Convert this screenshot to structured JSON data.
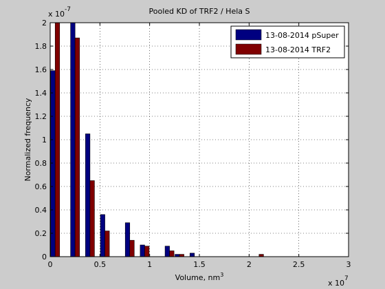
{
  "chart_data": {
    "type": "bar",
    "title": "Pooled KD of TRF2 / Hela S",
    "xlabel": "Volume, nm",
    "xlabel_superscript": "3",
    "ylabel": "Normalized frequency",
    "x_exponent_base": "x 10",
    "x_exponent_power": "7",
    "y_exponent_base": "x 10",
    "y_exponent_power": "-7",
    "xlim": [
      0,
      3
    ],
    "ylim": [
      0,
      2
    ],
    "x_ticks": [
      0,
      0.5,
      1,
      1.5,
      2,
      2.5,
      3
    ],
    "x_tick_labels": [
      "0",
      "0.5",
      "1",
      "1.5",
      "2",
      "2.5",
      "3"
    ],
    "y_ticks": [
      0,
      0.2,
      0.4,
      0.6,
      0.8,
      1,
      1.2,
      1.4,
      1.6,
      1.8,
      2
    ],
    "y_tick_labels": [
      "0",
      "0.2",
      "0.4",
      "0.6",
      "0.8",
      "1",
      "1.2",
      "1.4",
      "1.6",
      "1.8",
      "2"
    ],
    "grid": true,
    "legend_position": "top-right",
    "x": [
      0.05,
      0.25,
      0.4,
      0.55,
      0.8,
      0.95,
      1.2,
      1.3,
      1.45,
      2.1
    ],
    "series": [
      {
        "name": "13-08-2014 pSuper",
        "color": "#000080",
        "values": [
          1.59,
          2.0,
          1.05,
          0.36,
          0.29,
          0.1,
          0.09,
          0.02,
          0.03,
          0.0
        ]
      },
      {
        "name": "13-08-2014 TRF2",
        "color": "#800000",
        "values": [
          2.0,
          1.87,
          0.65,
          0.22,
          0.14,
          0.09,
          0.05,
          0.02,
          0.0,
          0.02
        ]
      }
    ]
  }
}
